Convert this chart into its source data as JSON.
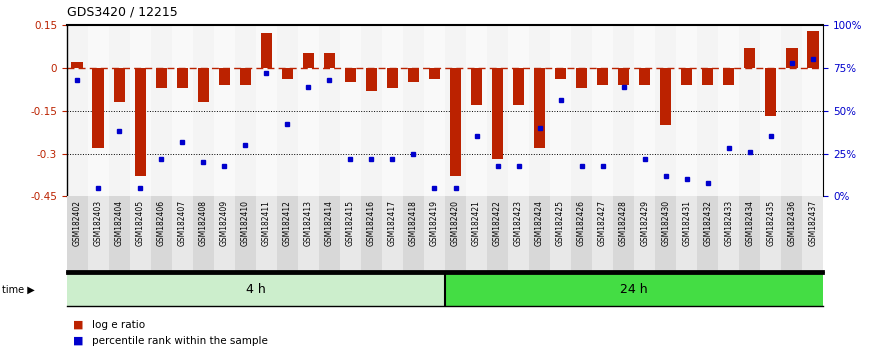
{
  "title": "GDS3420 / 12215",
  "samples": [
    "GSM182402",
    "GSM182403",
    "GSM182404",
    "GSM182405",
    "GSM182406",
    "GSM182407",
    "GSM182408",
    "GSM182409",
    "GSM182410",
    "GSM182411",
    "GSM182412",
    "GSM182413",
    "GSM182414",
    "GSM182415",
    "GSM182416",
    "GSM182417",
    "GSM182418",
    "GSM182419",
    "GSM182420",
    "GSM182421",
    "GSM182422",
    "GSM182423",
    "GSM182424",
    "GSM182425",
    "GSM182426",
    "GSM182427",
    "GSM182428",
    "GSM182429",
    "GSM182430",
    "GSM182431",
    "GSM182432",
    "GSM182433",
    "GSM182434",
    "GSM182435",
    "GSM182436",
    "GSM182437"
  ],
  "log_ratio": [
    0.02,
    -0.28,
    -0.12,
    -0.38,
    -0.07,
    -0.07,
    -0.12,
    -0.06,
    -0.06,
    0.12,
    -0.04,
    0.05,
    0.05,
    -0.05,
    -0.08,
    -0.07,
    -0.05,
    -0.04,
    -0.38,
    -0.13,
    -0.32,
    -0.13,
    -0.28,
    -0.04,
    -0.07,
    -0.06,
    -0.06,
    -0.06,
    -0.2,
    -0.06,
    -0.06,
    -0.06,
    0.07,
    -0.17,
    0.07,
    0.13
  ],
  "percentile": [
    68,
    5,
    38,
    5,
    22,
    32,
    20,
    18,
    30,
    72,
    42,
    64,
    68,
    22,
    22,
    22,
    25,
    5,
    5,
    35,
    18,
    18,
    40,
    56,
    18,
    18,
    64,
    22,
    12,
    10,
    8,
    28,
    26,
    35,
    78,
    80
  ],
  "group1_count": 18,
  "group1_label": "4 h",
  "group2_label": "24 h",
  "bar_color": "#BB2200",
  "dot_color": "#0000CC",
  "ylim_left": [
    -0.45,
    0.15
  ],
  "ylim_right": [
    0,
    100
  ],
  "yticks_left": [
    0.15,
    0.0,
    -0.15,
    -0.3,
    -0.45
  ],
  "yticks_right": [
    100,
    75,
    50,
    25,
    0
  ],
  "color_group1": "#CCEECC",
  "color_group2": "#44DD44",
  "col_odd_bg": "#E0E0E0",
  "col_even_bg": "#F0F0F0"
}
